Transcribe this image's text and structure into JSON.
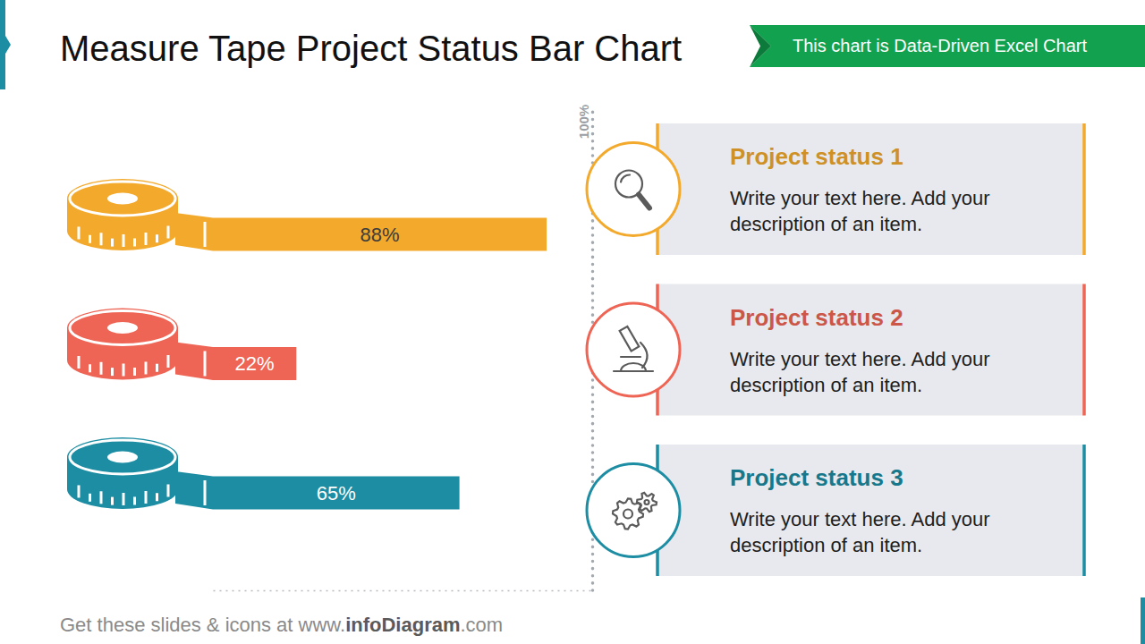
{
  "chart_data": {
    "type": "bar",
    "title": "Measure Tape Project Status Bar Chart",
    "orientation": "horizontal",
    "categories": [
      "Project status 1",
      "Project status 2",
      "Project status 3"
    ],
    "descriptions": [
      "Write your text here. Add your description of an item.",
      "Write your text here. Add your description of an item.",
      "Write your text here. Add your description of an item."
    ],
    "values": [
      88,
      22,
      65
    ],
    "value_labels": [
      "88%",
      "22%",
      "65%"
    ],
    "colors": [
      "#F3AA2C",
      "#EF6555",
      "#1C8DA3"
    ],
    "data_labels": true,
    "xlim": [
      0,
      100
    ],
    "xticks": [
      {
        "value": 100,
        "label": "100%"
      }
    ]
  },
  "banner": "This chart is Data-Driven Excel Chart",
  "footer": {
    "lead": "Get these slides & icons at www.",
    "brand": "infoDiagram",
    "tail": ".com"
  }
}
